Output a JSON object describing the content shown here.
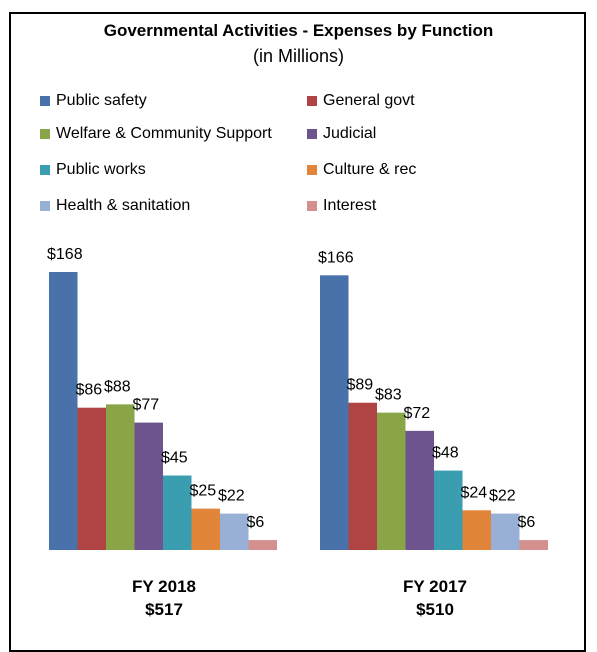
{
  "chart_data": {
    "type": "bar",
    "title": "Governmental Activities - Expenses by Function",
    "subtitle": "(in Millions)",
    "legend_placement": "top",
    "grid": false,
    "ylim": [
      0,
      175
    ],
    "series": [
      {
        "name": "Public safety",
        "color": "#4a72aa"
      },
      {
        "name": "General govt",
        "color": "#b04444"
      },
      {
        "name": "Welfare & Community Support",
        "color": "#89a548"
      },
      {
        "name": "Judicial",
        "color": "#6e548f"
      },
      {
        "name": "Public works",
        "color": "#3a9db0"
      },
      {
        "name": "Culture & rec",
        "color": "#e0853a"
      },
      {
        "name": "Health & sanitation",
        "color": "#98b0d6"
      },
      {
        "name": "Interest",
        "color": "#d48f8f"
      }
    ],
    "panels": [
      {
        "label": "FY 2018",
        "total": "$517",
        "values": [
          168,
          86,
          88,
          77,
          45,
          25,
          22,
          6
        ],
        "value_labels": [
          "$168",
          "$86",
          "$88",
          "$77",
          "$45",
          "$25",
          "$22",
          "$6"
        ]
      },
      {
        "label": "FY 2017",
        "total": "$510",
        "values": [
          166,
          89,
          83,
          72,
          48,
          24,
          22,
          6
        ],
        "value_labels": [
          "$166",
          "$89",
          "$83",
          "$72",
          "$48",
          "$24",
          "$22",
          "$6"
        ]
      }
    ]
  }
}
